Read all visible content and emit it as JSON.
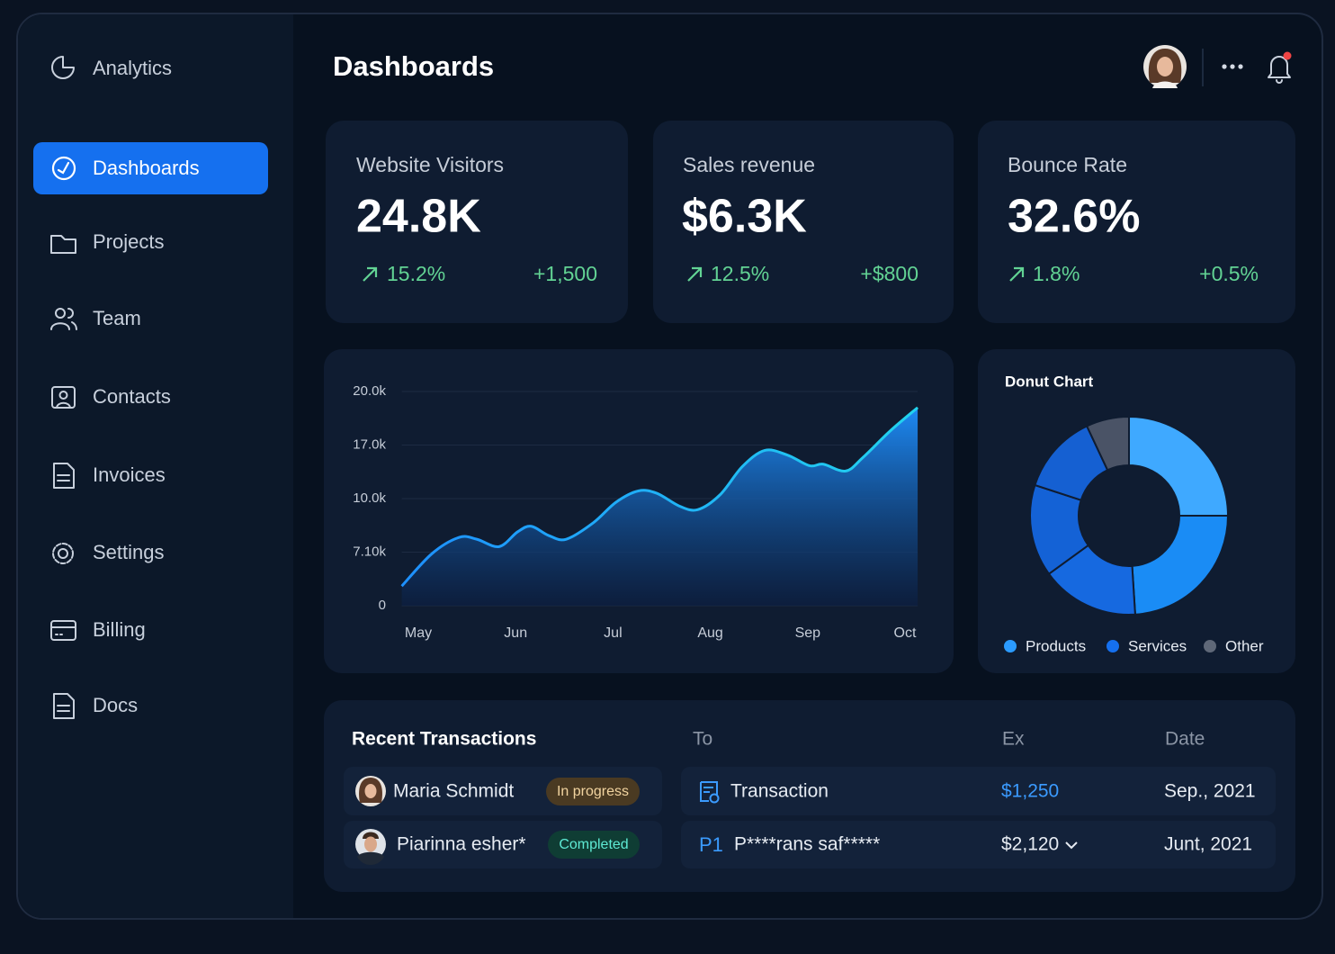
{
  "sidebar": {
    "brand": "Analytics",
    "nav": [
      "Dashboards",
      "Projects",
      "Team",
      "Contacts",
      "Invoices",
      "Settings",
      "Billing",
      "Docs"
    ]
  },
  "header": {
    "title": "Dashboards"
  },
  "kpis": [
    {
      "label": "Website Visitors",
      "value": "24.8K",
      "change": "15.2%",
      "delta": "+1,500"
    },
    {
      "label": "Sales revenue",
      "value": "$6.3K",
      "change": "12.5%",
      "delta": "+$800"
    },
    {
      "label": "Bounce Rate",
      "value": "32.6%",
      "change": "1.8%",
      "delta": "+0.5%"
    }
  ],
  "area_chart": {
    "type": "area",
    "color": "#1e90ff",
    "x": [
      -0.17,
      0.14,
      0.42,
      0.6,
      0.83,
      1.02,
      1.16,
      1.34,
      1.52,
      1.8,
      2.03,
      2.26,
      2.45,
      2.68,
      2.87,
      3.1,
      3.33,
      3.56,
      3.79,
      4.02,
      4.16,
      4.39,
      4.57,
      4.85,
      5.13
    ],
    "values": [
      2600,
      6900,
      7900,
      7800,
      7400,
      8200,
      8500,
      8000,
      7800,
      8700,
      9800,
      11000,
      10700,
      9600,
      9400,
      10500,
      14200,
      16300,
      15700,
      14300,
      14500,
      13600,
      15400,
      17800,
      19100
    ],
    "xlim": [
      -0.17,
      5.13
    ],
    "ylim": [
      0,
      20000
    ],
    "xticks": [
      {
        "value": 0,
        "label": "May"
      },
      {
        "value": 1,
        "label": "Jun"
      },
      {
        "value": 2,
        "label": "Jul"
      },
      {
        "value": 3,
        "label": "Aug"
      },
      {
        "value": 4,
        "label": "Sep"
      },
      {
        "value": 5,
        "label": "Oct"
      }
    ],
    "yticks": [
      {
        "value": 20000,
        "label": "20.0k"
      },
      {
        "value": 17000,
        "label": "17.0k"
      },
      {
        "value": 10000,
        "label": "10.0k"
      },
      {
        "value": 7100,
        "label": "7.10k"
      },
      0
    ],
    "grid": true
  },
  "donut_chart": {
    "type": "donut",
    "title": "Donut Chart",
    "values": [
      25,
      24,
      16,
      15,
      13,
      7
    ],
    "colors": [
      "#3fa9ff",
      "#1a8cf5",
      "#1669e0",
      "#1462d6",
      "#1560d2",
      "#4a5366"
    ],
    "legend": [
      {
        "name": "Products",
        "color": "#2b9bff"
      },
      {
        "name": "Services",
        "color": "#1570ef"
      },
      {
        "name": "Other",
        "color": "#5f6878"
      }
    ]
  },
  "transactions": {
    "title": "Recent Transactions",
    "columns": [
      "To",
      "Ex",
      "Date"
    ],
    "rows": [
      {
        "name": "Maria Schmidt",
        "status": "In progress",
        "to": "Transaction",
        "ex": "$1,250",
        "date": "Sep., 2021"
      },
      {
        "name": "Piarinna esher*",
        "status": "Completed",
        "to_icon": "P1",
        "to": "P****rans saf*****",
        "ex": "$2,120",
        "date": "Junt, 2021"
      }
    ]
  }
}
